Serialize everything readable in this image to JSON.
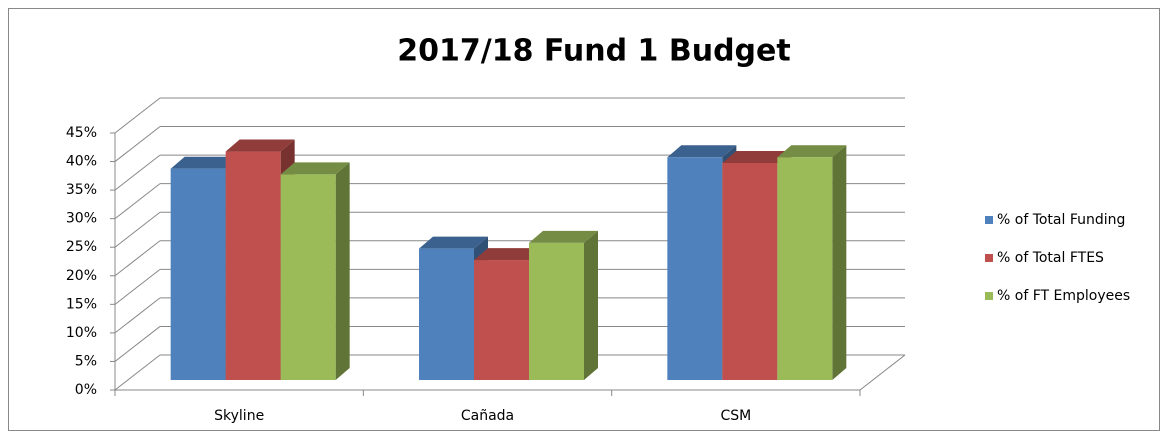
{
  "chart_data": {
    "type": "bar3d",
    "title": "2017/18 Fund 1 Budget",
    "categories": [
      "Skyline",
      "Cañada",
      "CSM"
    ],
    "series": [
      {
        "name": "% of Total Funding",
        "color": "#4f81bd",
        "values": [
          37,
          23,
          39
        ]
      },
      {
        "name": "% of Total FTES",
        "color": "#c0504d",
        "values": [
          40,
          21,
          38
        ]
      },
      {
        "name": "% of FT Employees",
        "color": "#9bbb59",
        "values": [
          36,
          24,
          39
        ]
      }
    ],
    "ylim": [
      0,
      45
    ],
    "yticks": [
      {
        "value": 0,
        "label": "0%"
      },
      {
        "value": 5,
        "label": "5%"
      },
      {
        "value": 10,
        "label": "10%"
      },
      {
        "value": 15,
        "label": "15%"
      },
      {
        "value": 20,
        "label": "20%"
      },
      {
        "value": 25,
        "label": "25%"
      },
      {
        "value": 30,
        "label": "30%"
      },
      {
        "value": 35,
        "label": "35%"
      },
      {
        "value": 40,
        "label": "40%"
      },
      {
        "value": 45,
        "label": "45%"
      }
    ],
    "grid": true,
    "legend": "right"
  }
}
